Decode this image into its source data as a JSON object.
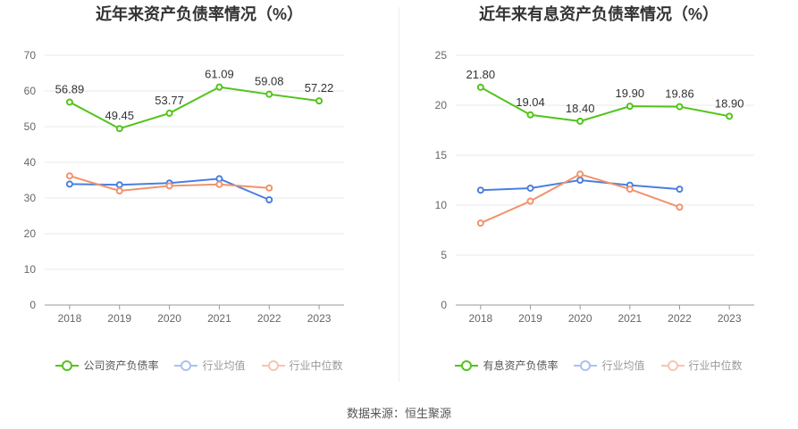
{
  "colors": {
    "primary": "#52c41a",
    "avg": "#4a7fe0",
    "median": "#f2926b"
  },
  "chart_data": [
    {
      "type": "line",
      "title": "近年来资产负债率情况（%）",
      "categories": [
        "2018",
        "2019",
        "2020",
        "2021",
        "2022",
        "2023"
      ],
      "ylim": [
        0,
        70
      ],
      "yticks": [
        0,
        10,
        20,
        30,
        40,
        50,
        60,
        70
      ],
      "legend_position": "bottom",
      "series": [
        {
          "name": "公司资产负债率",
          "values": [
            56.89,
            49.45,
            53.77,
            61.09,
            59.08,
            57.22
          ],
          "labels": [
            "56.89",
            "49.45",
            "53.77",
            "61.09",
            "59.08",
            "57.22"
          ]
        },
        {
          "name": "行业均值",
          "values": [
            33.9,
            33.7,
            34.2,
            35.4,
            29.5,
            null
          ]
        },
        {
          "name": "行业中位数",
          "values": [
            36.2,
            32.0,
            33.4,
            33.8,
            32.8,
            null
          ]
        }
      ]
    },
    {
      "type": "line",
      "title": "近年来有息资产负债率情况（%）",
      "categories": [
        "2018",
        "2019",
        "2020",
        "2021",
        "2022",
        "2023"
      ],
      "ylim": [
        0,
        25
      ],
      "yticks": [
        0,
        5,
        10,
        15,
        20,
        25
      ],
      "legend_position": "bottom",
      "series": [
        {
          "name": "有息资产负债率",
          "values": [
            21.8,
            19.04,
            18.4,
            19.9,
            19.86,
            18.9
          ],
          "labels": [
            "21.80",
            "19.04",
            "18.40",
            "19.90",
            "19.86",
            "18.90"
          ]
        },
        {
          "name": "行业均值",
          "values": [
            11.5,
            11.7,
            12.5,
            12.0,
            11.6,
            null
          ]
        },
        {
          "name": "行业中位数",
          "values": [
            8.2,
            10.4,
            13.1,
            11.6,
            9.8,
            null
          ]
        }
      ]
    }
  ],
  "source_text": "数据来源：恒生聚源"
}
